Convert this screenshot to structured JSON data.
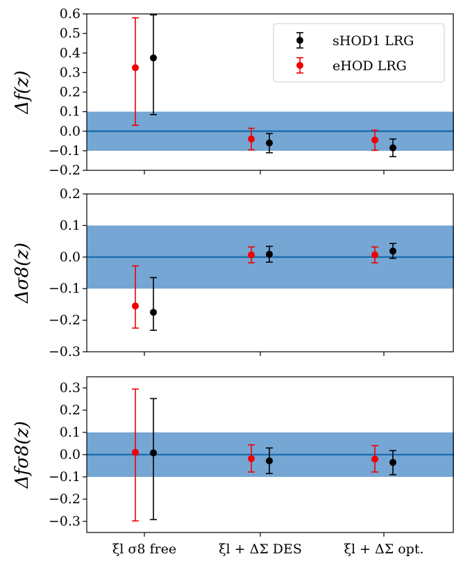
{
  "chart_data": {
    "type": "scatter",
    "categories": [
      "ξl  σ8 free",
      "ξl + ΔΣ DES",
      "ξl + ΔΣ opt."
    ],
    "band": {
      "low": -0.1,
      "high": 0.1,
      "color": "#75a6d4",
      "line_color": "#1f6fb0"
    },
    "legend": {
      "placement": "upper-right",
      "entries": [
        {
          "name": "sHOD1 LRG",
          "color": "#000000"
        },
        {
          "name": "eHOD LRG",
          "color": "#ee0000"
        }
      ]
    },
    "panels": [
      {
        "ylabel": "Δf(z)",
        "ylim": [
          -0.2,
          0.6
        ],
        "yticks": [
          -0.2,
          -0.1,
          0.0,
          0.1,
          0.2,
          0.3,
          0.4,
          0.5,
          0.6
        ],
        "ytick_labels": [
          "−0.2",
          "−0.1",
          "0.0",
          "0.1",
          "0.2",
          "0.3",
          "0.4",
          "0.5",
          "0.6"
        ],
        "series": [
          {
            "name": "eHOD LRG",
            "values": [
              0.325,
              -0.04,
              -0.045
            ],
            "err_low": [
              0.03,
              -0.095,
              -0.098
            ],
            "err_high": [
              0.58,
              0.015,
              0.005
            ]
          },
          {
            "name": "sHOD1 LRG",
            "values": [
              0.375,
              -0.06,
              -0.085
            ],
            "err_low": [
              0.085,
              -0.11,
              -0.13
            ],
            "err_high": [
              0.595,
              -0.012,
              -0.04
            ]
          }
        ]
      },
      {
        "ylabel": "Δσ8(z)",
        "ylim": [
          -0.3,
          0.2
        ],
        "yticks": [
          -0.3,
          -0.2,
          -0.1,
          0.0,
          0.1,
          0.2
        ],
        "ytick_labels": [
          "−0.3",
          "−0.2",
          "−0.1",
          "0.0",
          "0.1",
          "0.2"
        ],
        "series": [
          {
            "name": "eHOD LRG",
            "values": [
              -0.155,
              0.007,
              0.007
            ],
            "err_low": [
              -0.225,
              -0.018,
              -0.018
            ],
            "err_high": [
              -0.028,
              0.032,
              0.032
            ]
          },
          {
            "name": "sHOD1 LRG",
            "values": [
              -0.175,
              0.009,
              0.019
            ],
            "err_low": [
              -0.232,
              -0.016,
              -0.004
            ],
            "err_high": [
              -0.065,
              0.034,
              0.043
            ]
          }
        ]
      },
      {
        "ylabel": "Δfσ8(z)",
        "ylim": [
          -0.35,
          0.35
        ],
        "yticks": [
          -0.3,
          -0.2,
          -0.1,
          0.0,
          0.1,
          0.2,
          0.3
        ],
        "ytick_labels": [
          "−0.3",
          "−0.2",
          "−0.1",
          "0.0",
          "0.1",
          "0.2",
          "0.3"
        ],
        "series": [
          {
            "name": "eHOD LRG",
            "values": [
              0.01,
              -0.018,
              -0.02
            ],
            "err_low": [
              -0.298,
              -0.078,
              -0.078
            ],
            "err_high": [
              0.295,
              0.044,
              0.04
            ]
          },
          {
            "name": "sHOD1 LRG",
            "values": [
              0.008,
              -0.028,
              -0.035
            ],
            "err_low": [
              -0.292,
              -0.085,
              -0.09
            ],
            "err_high": [
              0.252,
              0.03,
              0.018
            ]
          }
        ]
      }
    ]
  }
}
